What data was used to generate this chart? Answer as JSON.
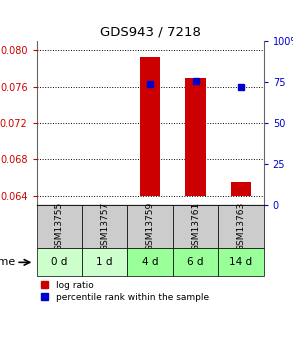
{
  "title": "GDS943 / 7218",
  "samples": [
    "GSM13755",
    "GSM13757",
    "GSM13759",
    "GSM13761",
    "GSM13763"
  ],
  "time_labels": [
    "0 d",
    "1 d",
    "4 d",
    "6 d",
    "14 d"
  ],
  "log_ratio_baseline": 0.064,
  "log_ratio_values": [
    0.064,
    0.064,
    0.0793,
    0.077,
    0.0655
  ],
  "percentile_values": [
    null,
    null,
    74,
    76,
    72
  ],
  "ylim_left": [
    0.063,
    0.081
  ],
  "ylim_right": [
    0,
    100
  ],
  "yticks_left": [
    0.064,
    0.068,
    0.072,
    0.076,
    0.08
  ],
  "yticks_right": [
    0,
    25,
    50,
    75,
    100
  ],
  "bar_color": "#cc0000",
  "dot_color": "#0000cc",
  "grid_color": "#000000",
  "bg_color_plot": "#ffffff",
  "bg_color_sample": "#cccccc",
  "bg_color_time_0d": "#ccffcc",
  "bg_color_time_other": "#99ff99",
  "legend_log_ratio": "log ratio",
  "legend_percentile": "percentile rank within the sample",
  "ylabel_left_color": "#cc0000",
  "ylabel_right_color": "#0000cc",
  "title_color": "#000000",
  "time_row_colors": [
    "#ccffcc",
    "#ccffcc",
    "#99ff99",
    "#99ff99",
    "#99ff99"
  ]
}
